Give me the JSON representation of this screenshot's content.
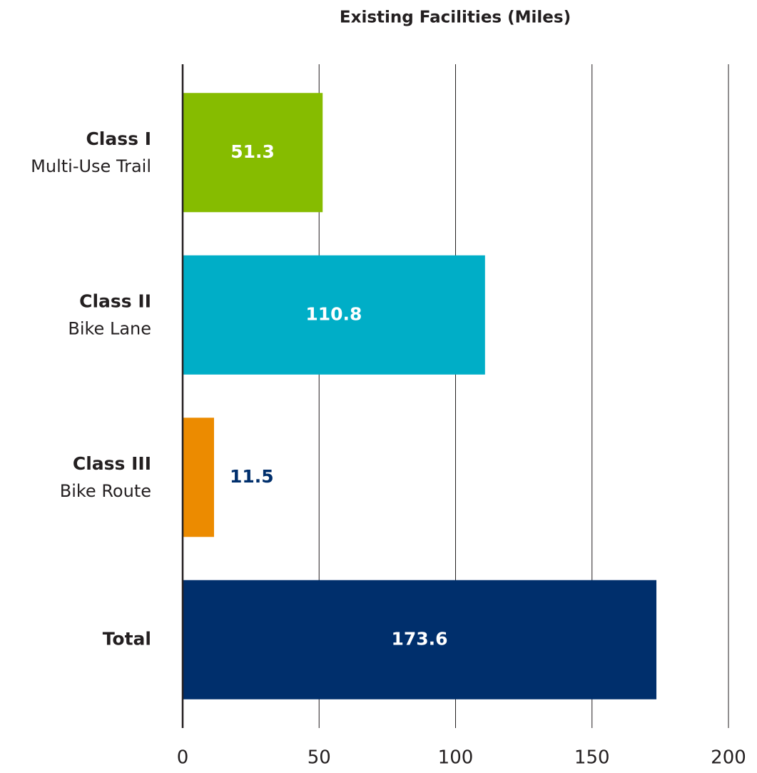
{
  "chart_data": {
    "type": "bar",
    "orientation": "horizontal",
    "title": "Existing Facilities (Miles)",
    "categories": [
      "Class I",
      "Class II",
      "Class III",
      "Total"
    ],
    "category_descriptions": [
      "Multi-Use Trail",
      "Bike Lane",
      "Bike Route",
      null
    ],
    "values": [
      51.3,
      110.8,
      11.5,
      173.6
    ],
    "colors": [
      "#86bc00",
      "#00aec7",
      "#ec8b00",
      "#002f6c"
    ],
    "xlim": [
      0,
      200
    ],
    "xticks": [
      0,
      50,
      100,
      150,
      200
    ],
    "grid": true
  }
}
